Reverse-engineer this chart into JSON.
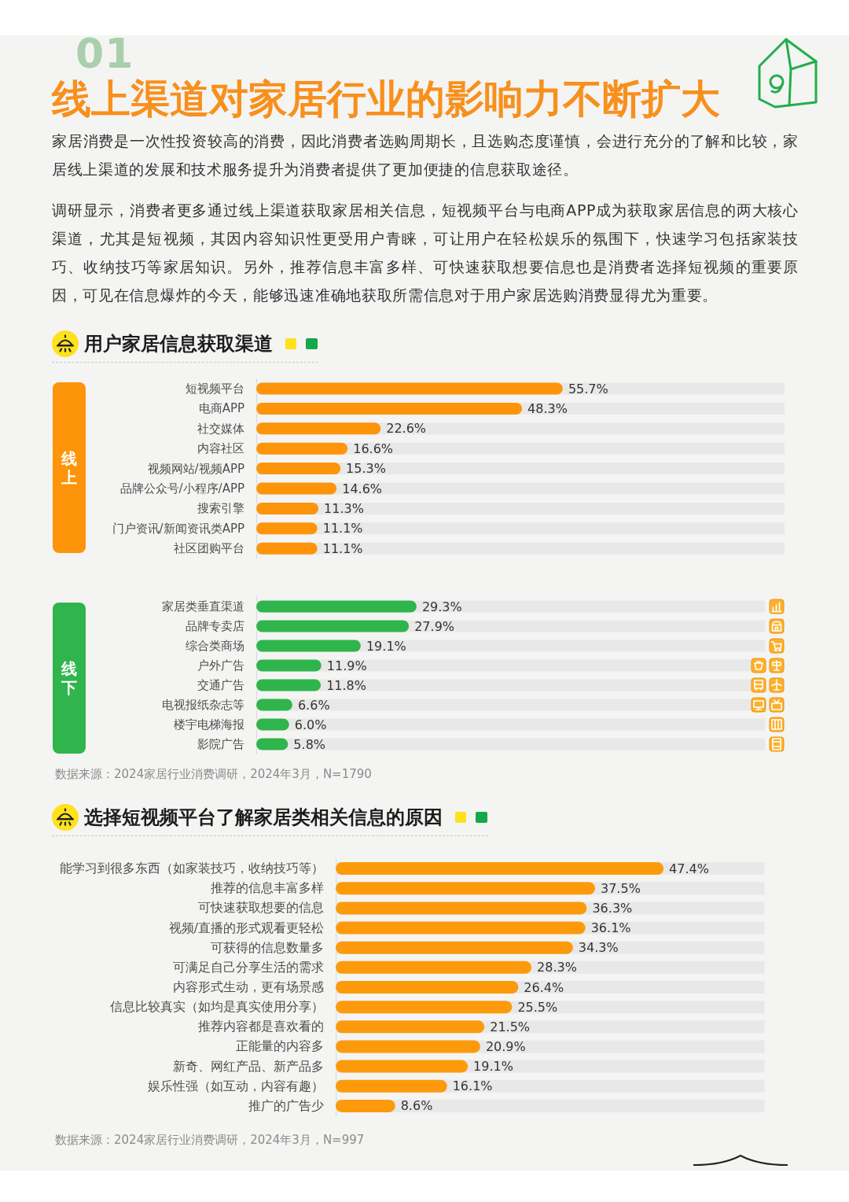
{
  "chart_data": [
    {
      "type": "other",
      "title": "线上渠道对家居行业的影响力不断扩大",
      "annotations": [
        "01",
        "家居消费是一次性投资较高的消费，因此消费者选购周期长，且选购态度谨慎，会进行充分的了解和比较，家居线上渠道的发展和技术服务提升为消费者提供了更加便捷的信息获取途径。",
        "调研显示，消费者更多通过线上渠道获取家居相关信息，短视频平台与电商APP成为获取家居信息的两大核心渠道，尤其是短视频，其因内容知识性更受用户青睐，可让用户在轻松娱乐的氛围下，快速学习包括家装技巧、收纳技巧等家居知识。另外，推荐信息丰富多样、可快速获取想要信息也是消费者选择短视频的重要原因，可见在信息爆炸的今天，能够迅速准确地获取所需信息对于用户家居选购消费显得尤为重要。"
      ]
    },
    {
      "type": "bar",
      "orientation": "horizontal",
      "title": "用户家居信息获取渠道",
      "ylabel": "线上",
      "categories": [
        "短视频平台",
        "电商APP",
        "社交媒体",
        "内容社区",
        "视频网站/视频APP",
        "品牌公众号/小程序/APP",
        "搜索引擎",
        "门户资讯/新闻资讯类APP",
        "社区团购平台"
      ],
      "values": [
        55.7,
        48.3,
        22.6,
        16.6,
        15.3,
        14.6,
        11.3,
        11.1,
        11.1
      ],
      "value_labels": [
        "55.7%",
        "48.3%",
        "22.6%",
        "16.6%",
        "15.3%",
        "14.6%",
        "11.3%",
        "11.1%",
        "11.1%"
      ],
      "color": "#fd940a",
      "xlim": [
        0,
        96
      ],
      "tick_labels": "y"
    },
    {
      "type": "bar",
      "orientation": "horizontal",
      "ylabel": "线下",
      "categories": [
        "家居类垂直渠道",
        "品牌专卖店",
        "综合类商场",
        "户外广告",
        "交通广告",
        "电视报纸杂志等",
        "楼宇电梯海报",
        "影院广告"
      ],
      "values": [
        29.3,
        27.9,
        19.1,
        11.9,
        11.8,
        6.6,
        6.0,
        5.8
      ],
      "value_labels": [
        "29.3%",
        "27.9%",
        "19.1%",
        "11.9%",
        "11.8%",
        "6.6%",
        "6.0%",
        "5.8%"
      ],
      "color": "#2fb54b",
      "xlim": [
        0,
        93
      ],
      "tick_labels": "y",
      "annotations": [
        "数据来源：2024家居行业消费调研，2024年3月，N=1790"
      ]
    },
    {
      "type": "bar",
      "orientation": "horizontal",
      "title": "选择短视频平台了解家居类相关信息的原因",
      "categories": [
        "能学习到很多东西（如家装技巧，收纳技巧等）",
        "推荐的信息丰富多样",
        "可快速获取想要的信息",
        "视频/直播的形式观看更轻松",
        "可获得的信息数量多",
        "可满足自己分享生活的需求",
        "内容形式生动，更有场景感",
        "信息比较真实（如均是真实使用分享）",
        "推荐内容都是喜欢看的",
        "正能量的内容多",
        "新奇、网红产品、新产品多",
        "娱乐性强（如互动，内容有趣）",
        "推广的广告少"
      ],
      "values": [
        47.4,
        37.5,
        36.3,
        36.1,
        34.3,
        28.3,
        26.4,
        25.5,
        21.5,
        20.9,
        19.1,
        16.1,
        8.6
      ],
      "value_labels": [
        "47.4%",
        "37.5%",
        "36.3%",
        "36.1%",
        "34.3%",
        "28.3%",
        "26.4%",
        "25.5%",
        "21.5%",
        "20.9%",
        "19.1%",
        "16.1%",
        "8.6%"
      ],
      "color": "#fd9a0c",
      "xlim": [
        0,
        62
      ],
      "tick_labels": "y",
      "annotations": [
        "数据来源：2024家居行业消费调研，2024年3月，N=997"
      ]
    }
  ]
}
